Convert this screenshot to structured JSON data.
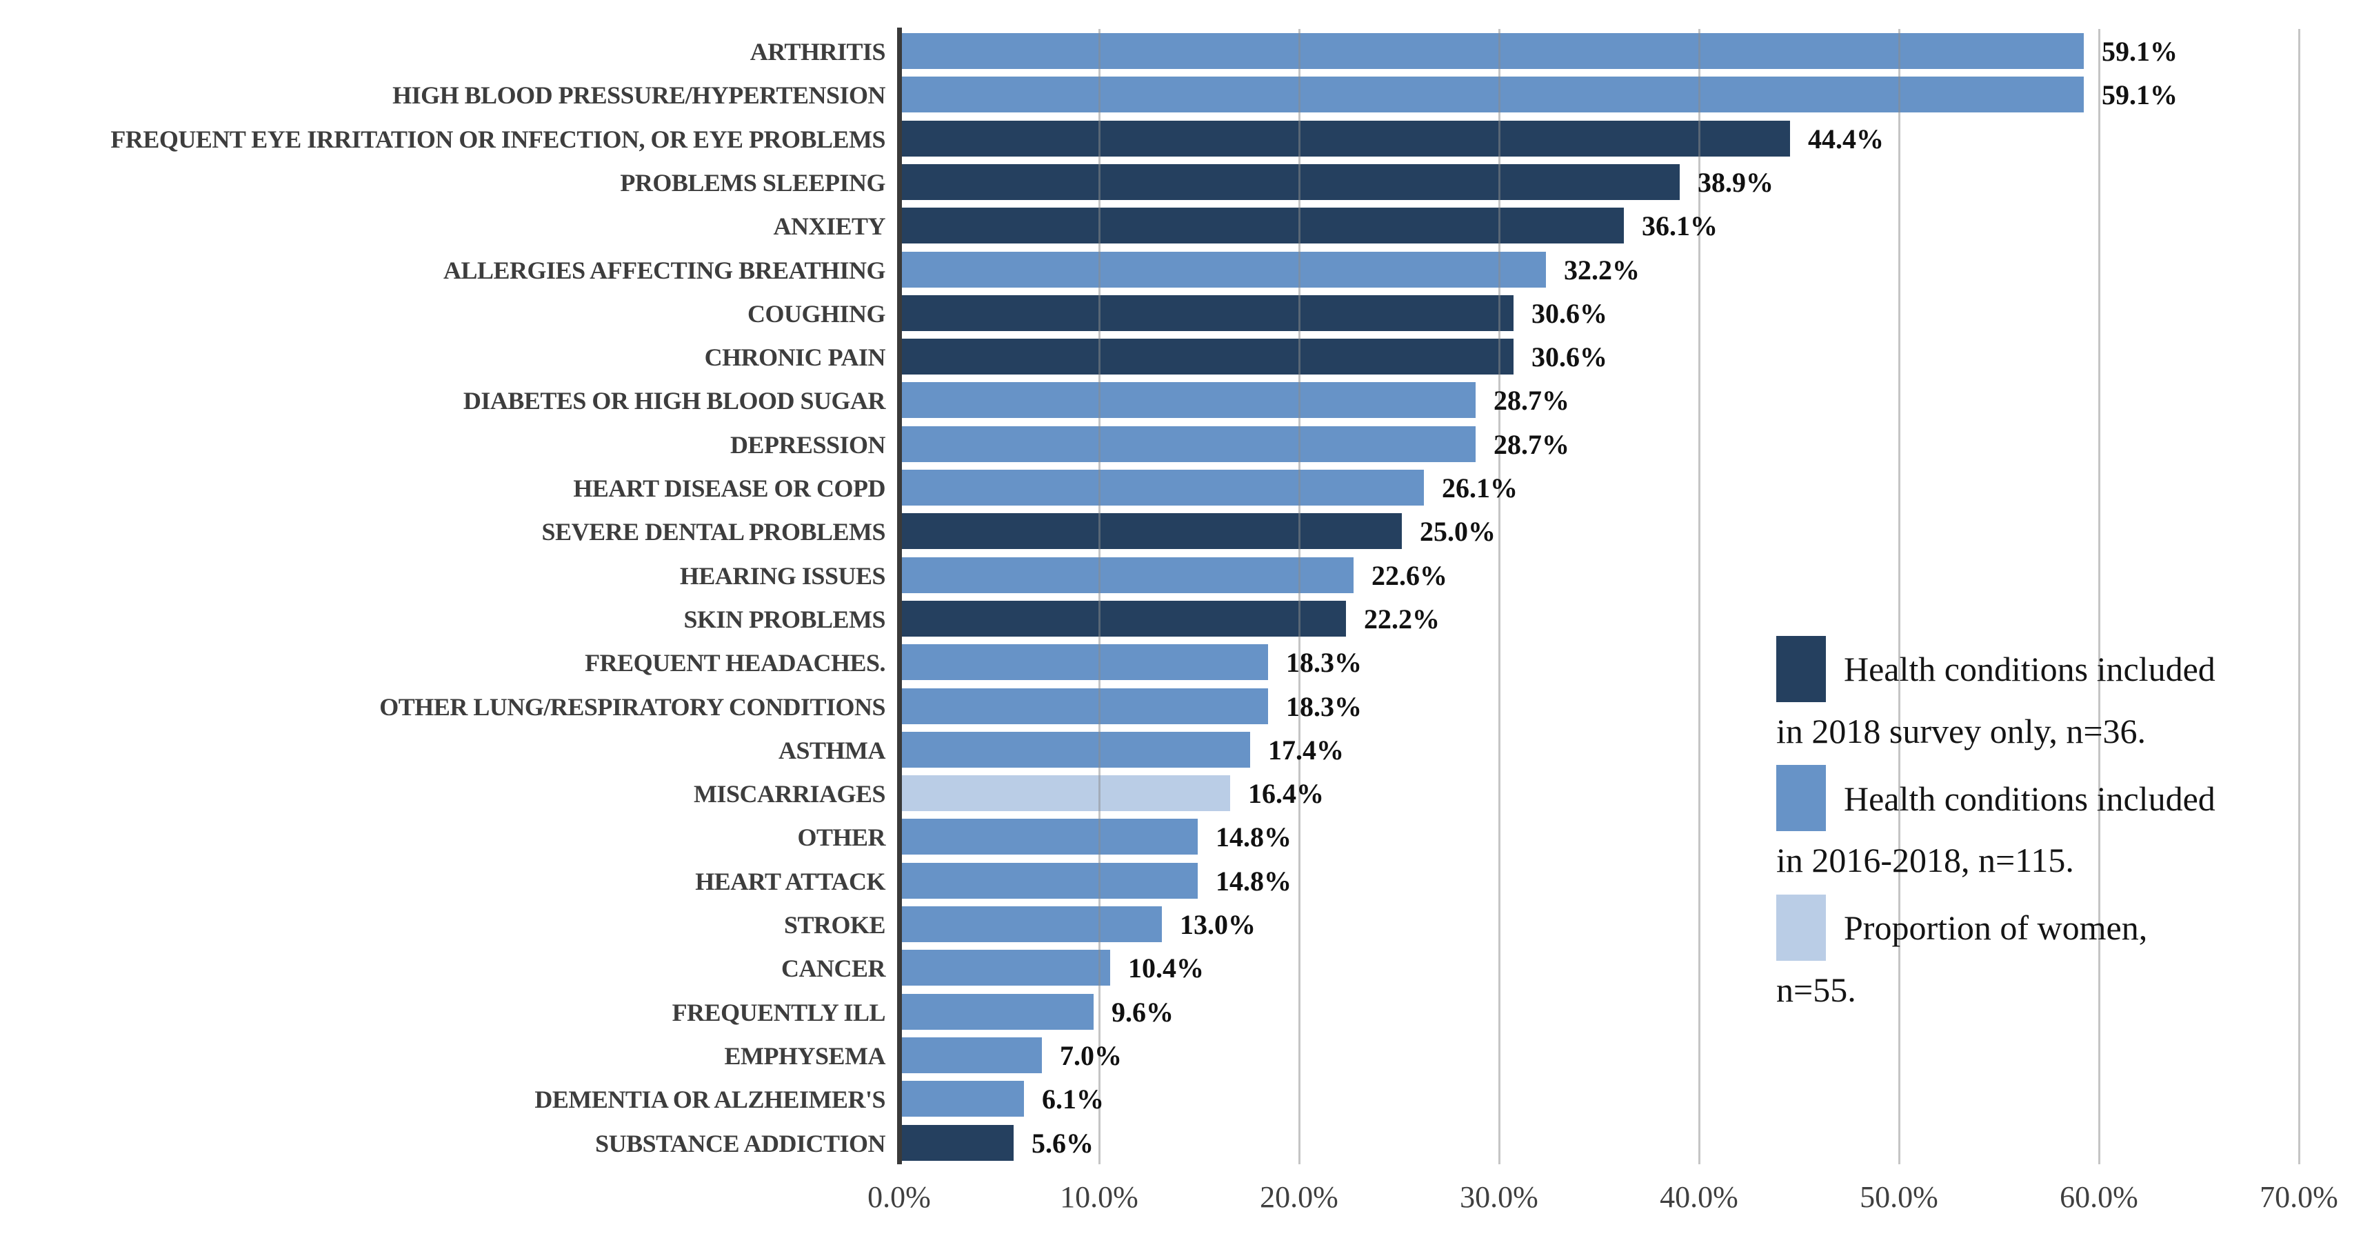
{
  "chart_data": {
    "type": "bar",
    "orientation": "horizontal",
    "title": "",
    "xlabel": "",
    "ylabel": "",
    "x_axis": {
      "min": 0,
      "max": 70,
      "tick_step": 10,
      "tick_labels": [
        "0.0%",
        "10.0%",
        "20.0%",
        "30.0%",
        "40.0%",
        "50.0%",
        "60.0%",
        "70.0%"
      ]
    },
    "grid": "vertical",
    "series_colors": {
      "dark": "#25405F",
      "medium": "#6793C7",
      "light": "#BACDE6"
    },
    "axis_line_color": "#3A3A3A",
    "gridline_color": "#C6C6C6",
    "bars": [
      {
        "category": "ARTHRITIS",
        "value": 59.1,
        "label": "59.1%",
        "series": "medium"
      },
      {
        "category": "HIGH BLOOD PRESSURE/HYPERTENSION",
        "value": 59.1,
        "label": "59.1%",
        "series": "medium"
      },
      {
        "category": "FREQUENT EYE IRRITATION OR INFECTION, OR EYE PROBLEMS",
        "value": 44.4,
        "label": "44.4%",
        "series": "dark"
      },
      {
        "category": "PROBLEMS SLEEPING",
        "value": 38.9,
        "label": "38.9%",
        "series": "dark"
      },
      {
        "category": "ANXIETY",
        "value": 36.1,
        "label": "36.1%",
        "series": "dark"
      },
      {
        "category": "ALLERGIES AFFECTING BREATHING",
        "value": 32.2,
        "label": "32.2%",
        "series": "medium"
      },
      {
        "category": "COUGHING",
        "value": 30.6,
        "label": "30.6%",
        "series": "dark"
      },
      {
        "category": "CHRONIC PAIN",
        "value": 30.6,
        "label": "30.6%",
        "series": "dark"
      },
      {
        "category": "DIABETES OR HIGH BLOOD SUGAR",
        "value": 28.7,
        "label": "28.7%",
        "series": "medium"
      },
      {
        "category": "DEPRESSION",
        "value": 28.7,
        "label": "28.7%",
        "series": "medium"
      },
      {
        "category": "HEART DISEASE OR COPD",
        "value": 26.1,
        "label": "26.1%",
        "series": "medium"
      },
      {
        "category": "SEVERE DENTAL PROBLEMS",
        "value": 25.0,
        "label": "25.0%",
        "series": "dark"
      },
      {
        "category": "HEARING ISSUES",
        "value": 22.6,
        "label": "22.6%",
        "series": "medium"
      },
      {
        "category": "SKIN PROBLEMS",
        "value": 22.2,
        "label": "22.2%",
        "series": "dark"
      },
      {
        "category": "FREQUENT HEADACHES.",
        "value": 18.3,
        "label": "18.3%",
        "series": "medium"
      },
      {
        "category": "OTHER LUNG/RESPIRATORY CONDITIONS",
        "value": 18.3,
        "label": "18.3%",
        "series": "medium"
      },
      {
        "category": "ASTHMA",
        "value": 17.4,
        "label": "17.4%",
        "series": "medium"
      },
      {
        "category": "MISCARRIAGES",
        "value": 16.4,
        "label": "16.4%",
        "series": "light"
      },
      {
        "category": "OTHER",
        "value": 14.8,
        "label": "14.8%",
        "series": "medium"
      },
      {
        "category": "HEART ATTACK",
        "value": 14.8,
        "label": "14.8%",
        "series": "medium"
      },
      {
        "category": "STROKE",
        "value": 13.0,
        "label": "13.0%",
        "series": "medium"
      },
      {
        "category": "CANCER",
        "value": 10.4,
        "label": "10.4%",
        "series": "medium"
      },
      {
        "category": "FREQUENTLY ILL",
        "value": 9.6,
        "label": "9.6%",
        "series": "medium"
      },
      {
        "category": "EMPHYSEMA",
        "value": 7.0,
        "label": "7.0%",
        "series": "medium"
      },
      {
        "category": "DEMENTIA OR ALZHEIMER'S",
        "value": 6.1,
        "label": "6.1%",
        "series": "medium"
      },
      {
        "category": "SUBSTANCE ADDICTION",
        "value": 5.6,
        "label": "5.6%",
        "series": "dark"
      }
    ],
    "legend": {
      "position": "right-inside",
      "entries": [
        {
          "swatch": "dark",
          "line1": "Health conditions included",
          "line2": "in 2018 survey only, n=36."
        },
        {
          "swatch": "medium",
          "line1": "Health conditions included",
          "line2": "in 2016-2018, n=115."
        },
        {
          "swatch": "light",
          "line1": "Proportion of women,",
          "line2": "n=55."
        }
      ]
    }
  }
}
